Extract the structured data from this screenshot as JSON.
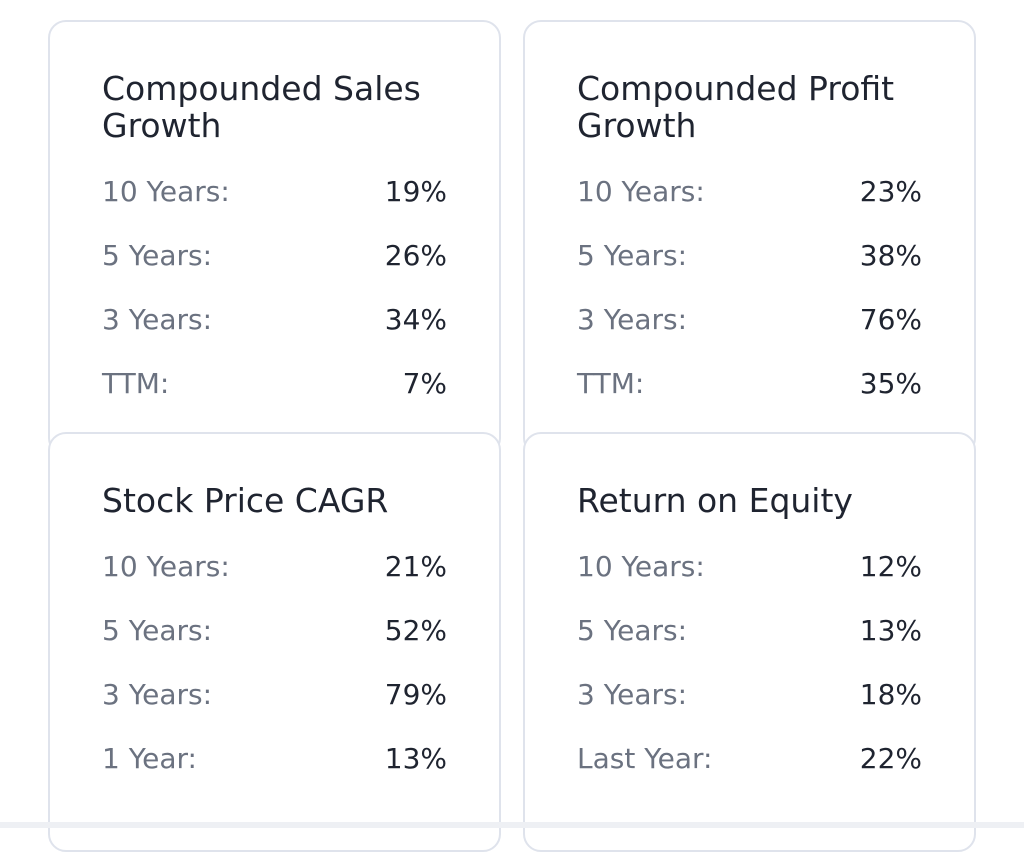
{
  "cards": [
    {
      "title": "Compounded Sales Growth",
      "rows": [
        [
          "10 Years:",
          "19%"
        ],
        [
          "5 Years:",
          "26%"
        ],
        [
          "3 Years:",
          "34%"
        ],
        [
          "TTM:",
          "7%"
        ]
      ]
    },
    {
      "title": "Compounded Profit Growth",
      "rows": [
        [
          "10 Years:",
          "23%"
        ],
        [
          "5 Years:",
          "38%"
        ],
        [
          "3 Years:",
          "76%"
        ],
        [
          "TTM:",
          "35%"
        ]
      ]
    },
    {
      "title": "Stock Price CAGR",
      "rows": [
        [
          "10 Years:",
          "21%"
        ],
        [
          "5 Years:",
          "52%"
        ],
        [
          "3 Years:",
          "79%"
        ],
        [
          "1 Year:",
          "13%"
        ]
      ]
    },
    {
      "title": "Return on Equity",
      "rows": [
        [
          "10 Years:",
          "12%"
        ],
        [
          "5 Years:",
          "13%"
        ],
        [
          "3 Years:",
          "18%"
        ],
        [
          "Last Year:",
          "22%"
        ]
      ]
    }
  ]
}
